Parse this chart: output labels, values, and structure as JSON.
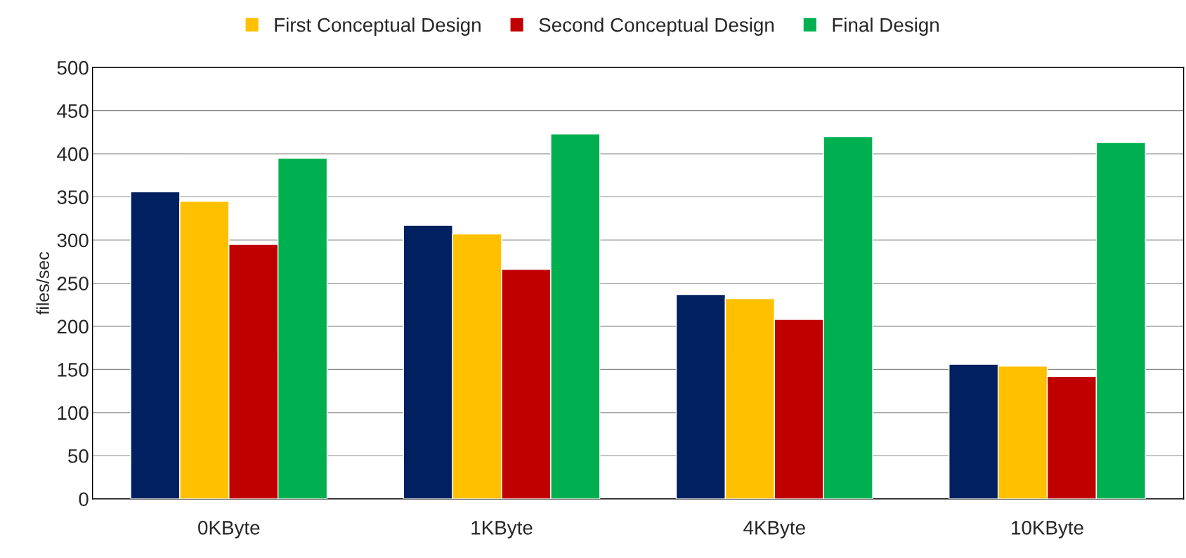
{
  "chart_data": {
    "type": "bar",
    "ylabel": "files/sec",
    "categories": [
      "0KByte",
      "1KByte",
      "4KByte",
      "10KByte"
    ],
    "series": [
      {
        "color": "#002060",
        "values": [
          356,
          317,
          237,
          156
        ]
      },
      {
        "name": "First Conceptual Design",
        "color": "#ffc000",
        "values": [
          345,
          307,
          232,
          154
        ]
      },
      {
        "name": "Second Conceptual Design",
        "color": "#c00000",
        "values": [
          295,
          266,
          208,
          142
        ]
      },
      {
        "name": "Final Design",
        "color": "#00b050",
        "values": [
          395,
          423,
          420,
          413
        ]
      }
    ],
    "ylim": [
      0,
      500
    ],
    "yticks": [
      0,
      50,
      100,
      150,
      200,
      250,
      300,
      350,
      400,
      450,
      500
    ],
    "grid": "y",
    "legend": "top"
  }
}
